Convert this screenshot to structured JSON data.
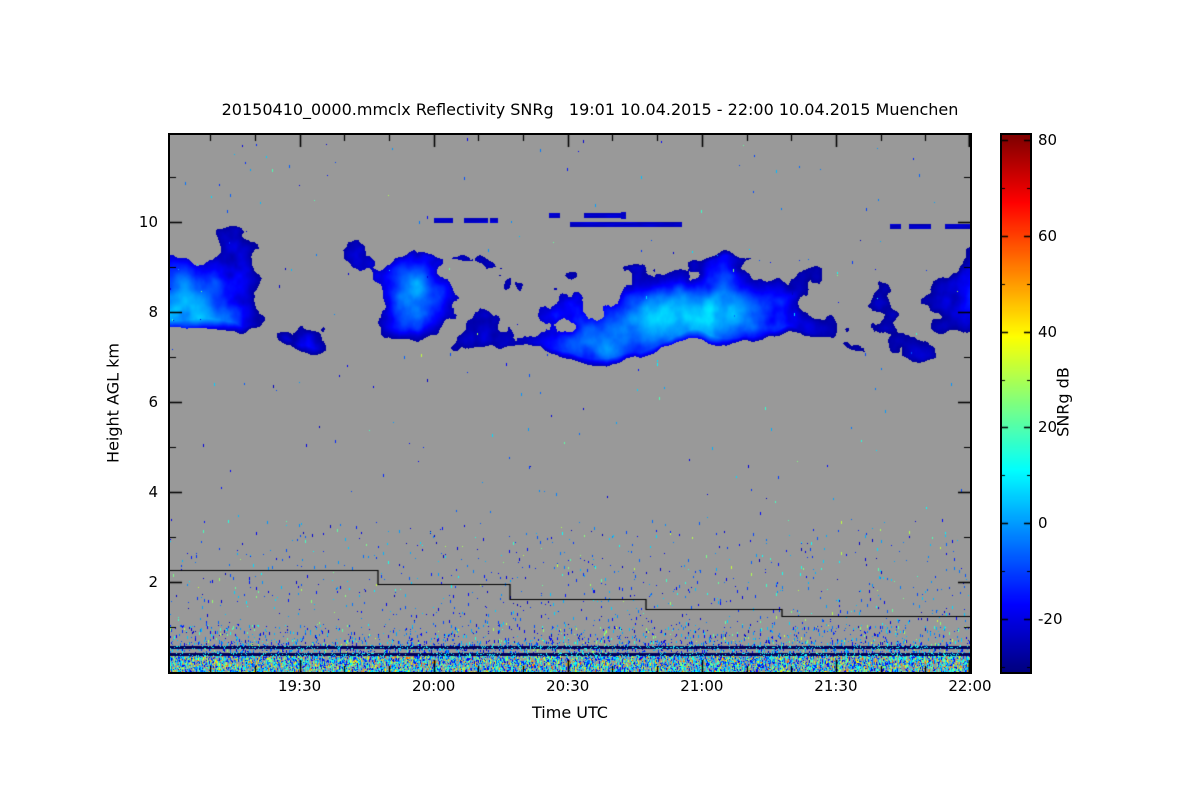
{
  "chart_data": {
    "type": "heatmap",
    "title": "20150410_0000.mmclx Reflectivity SNRg   19:01 10.04.2015 - 22:00 10.04.2015 Muenchen",
    "xlabel": "Time UTC",
    "ylabel": "Height AGL km",
    "x_axis": {
      "start": "19:01",
      "end": "22:00",
      "ticks": [
        "19:30",
        "20:00",
        "20:30",
        "21:00",
        "21:30",
        "22:00"
      ],
      "minor_step_minutes": 10
    },
    "y_axis": {
      "min_km": 0,
      "max_km": 11.93,
      "ticks": [
        2,
        4,
        6,
        8,
        10
      ],
      "minor_step_km": 1
    },
    "colorbar": {
      "label": "SNRg dB",
      "min": -31,
      "max": 81,
      "ticks": [
        80,
        60,
        40,
        20,
        0,
        -20
      ],
      "minor_step": 10,
      "colormap": "jet"
    },
    "no_data_color": "#999999",
    "features": {
      "cloud_band": {
        "description": "Mid/upper-level cloud layer present across the whole period",
        "height_range_km": [
          6.2,
          10.3
        ],
        "snr_range_db": [
          -28,
          12
        ],
        "bright_cores": [
          {
            "u": 0.012,
            "h_km": 8.2,
            "su": 0.05,
            "sh": 1.0,
            "w": 1.0
          },
          {
            "u": 0.56,
            "h_km": 7.7,
            "su": 0.1,
            "sh": 0.75,
            "w": 0.8
          },
          {
            "u": 0.68,
            "h_km": 8.0,
            "su": 0.07,
            "sh": 0.7,
            "w": 0.6
          },
          {
            "u": 0.3,
            "h_km": 8.6,
            "su": 0.08,
            "sh": 0.8,
            "w": 0.45
          }
        ]
      },
      "detached_streaks": [
        {
          "u0": 0.46,
          "u1": 0.58,
          "height_km": 10.15
        },
        {
          "u0": 0.5,
          "u1": 0.64,
          "height_km": 9.95
        },
        {
          "u0": 0.33,
          "u1": 0.41,
          "height_km": 10.05
        },
        {
          "u0": 0.9,
          "u1": 1.0,
          "height_km": 9.9
        }
      ],
      "boundary_layer_speckle": {
        "height_range_km": [
          0,
          3.4
        ],
        "snr_range_db": [
          -25,
          20
        ]
      },
      "surface_clutter_lines_km": [
        0.58,
        0.42
      ],
      "first_gate_steps": [
        {
          "u0": 0.0,
          "u1": 0.26,
          "h": 2.27
        },
        {
          "u0": 0.26,
          "u1": 0.425,
          "h": 1.95
        },
        {
          "u0": 0.425,
          "u1": 0.595,
          "h": 1.63
        },
        {
          "u0": 0.595,
          "u1": 0.765,
          "h": 1.4
        },
        {
          "u0": 0.765,
          "u1": 1.0,
          "h": 1.25
        }
      ]
    }
  }
}
